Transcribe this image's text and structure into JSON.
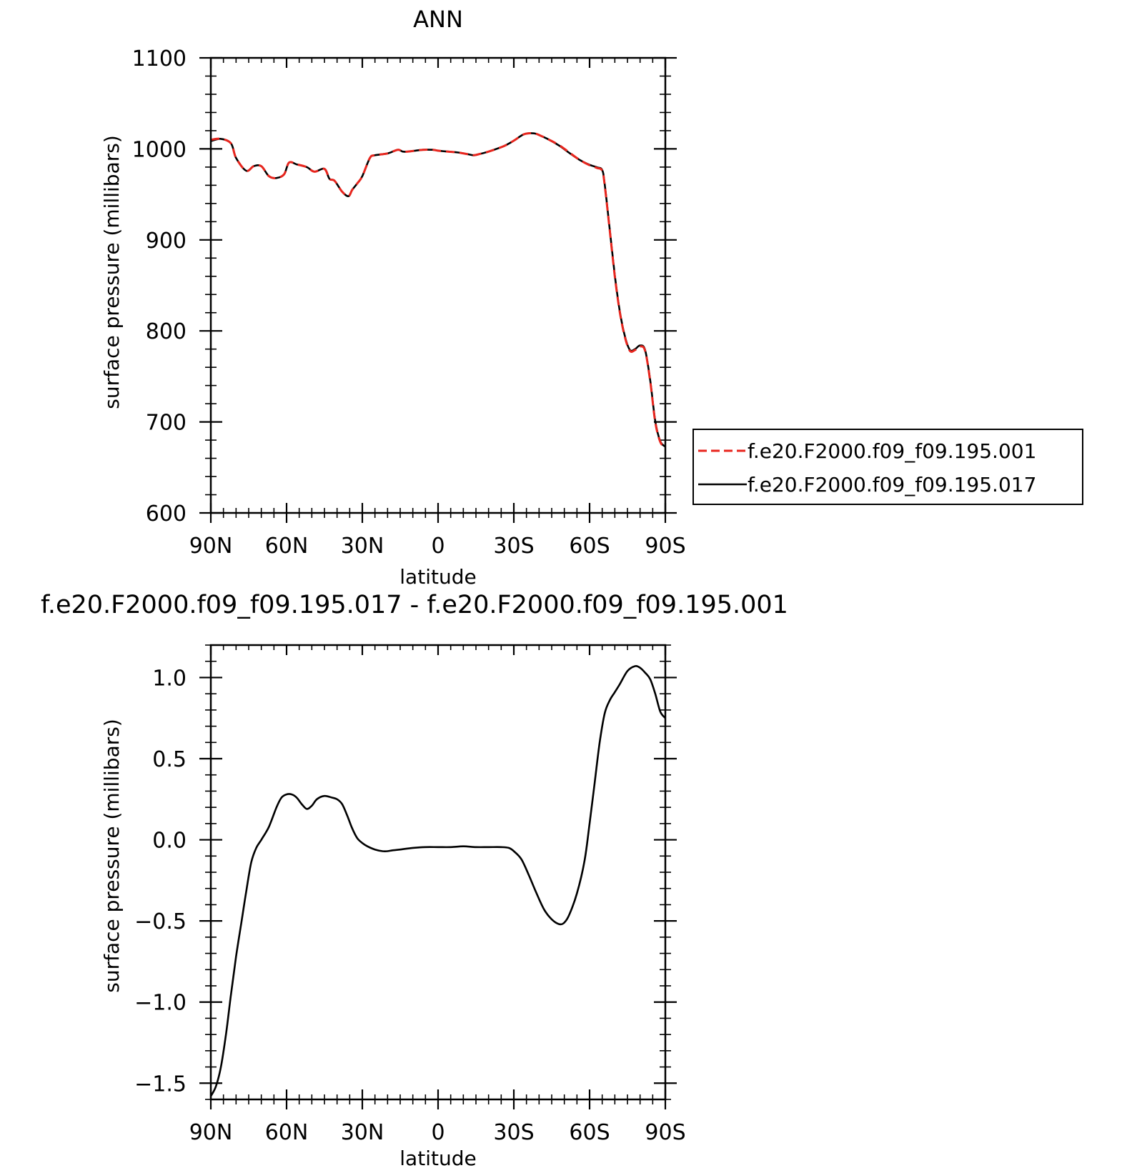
{
  "colors": {
    "series_001": "#e8261e",
    "series_017": "#000000",
    "axes": "#000000",
    "background": "#ffffff"
  },
  "chart_data": [
    {
      "type": "line",
      "title": "ANN",
      "xlabel": "latitude",
      "ylabel": "surface pressure (millibars)",
      "xlim": [
        90,
        -90
      ],
      "ylim": [
        600,
        1100
      ],
      "x_ticks": [
        {
          "value": 90,
          "label": "90N"
        },
        {
          "value": 60,
          "label": "60N"
        },
        {
          "value": 30,
          "label": "30N"
        },
        {
          "value": 0,
          "label": "0"
        },
        {
          "value": -30,
          "label": "30S"
        },
        {
          "value": -60,
          "label": "60S"
        },
        {
          "value": -90,
          "label": "90S"
        }
      ],
      "y_ticks": [
        {
          "value": 1100,
          "label": "1100"
        },
        {
          "value": 1000,
          "label": "1000"
        },
        {
          "value": 900,
          "label": "900"
        },
        {
          "value": 800,
          "label": "800"
        },
        {
          "value": 700,
          "label": "700"
        },
        {
          "value": 600,
          "label": "600"
        }
      ],
      "grid": false,
      "legend_position": "right",
      "series": [
        {
          "name": "f.e20.F2000.f09_f09.195.001",
          "style": "dashed",
          "color": "#e8261e",
          "x": [
            90,
            86,
            82,
            80,
            76,
            73,
            70,
            67,
            64,
            61,
            59,
            56,
            52,
            49,
            45,
            43,
            41,
            38,
            35.5,
            34,
            32,
            30,
            27,
            25,
            20,
            16,
            14,
            12,
            9,
            6,
            2,
            0,
            -4,
            -8,
            -12,
            -14,
            -16,
            -20,
            -26,
            -30,
            -34,
            -38,
            -41,
            -44,
            -48,
            -52,
            -56,
            -60,
            -63,
            -65,
            -66,
            -68,
            -70,
            -72,
            -74,
            -76,
            -78,
            -80,
            -82,
            -84,
            -86,
            -88,
            -90
          ],
          "y": [
            1010,
            1011,
            1006,
            990,
            976,
            981,
            981,
            970,
            968,
            972,
            985,
            983,
            980,
            975,
            978,
            967,
            965,
            953,
            948,
            955,
            962,
            970,
            990,
            993,
            995,
            999,
            997,
            997,
            998,
            999,
            999,
            998,
            997,
            996,
            994,
            993,
            994,
            997,
            1003,
            1009,
            1016,
            1017,
            1014,
            1010,
            1004,
            996,
            988,
            982,
            979,
            976,
            960,
            910,
            860,
            820,
            793,
            778,
            779,
            783,
            778,
            745,
            700,
            678,
            672
          ]
        },
        {
          "name": "f.e20.F2000.f09_f09.195.017",
          "style": "solid",
          "color": "#000000",
          "x": [
            90,
            86,
            82,
            80,
            76,
            73,
            70,
            67,
            64,
            61,
            59,
            56,
            52,
            49,
            45,
            43,
            41,
            38,
            35.5,
            34,
            32,
            30,
            27,
            25,
            20,
            16,
            14,
            12,
            9,
            6,
            2,
            0,
            -4,
            -8,
            -12,
            -14,
            -16,
            -20,
            -26,
            -30,
            -34,
            -38,
            -41,
            -44,
            -48,
            -52,
            -56,
            -60,
            -63,
            -65,
            -66,
            -68,
            -70,
            -72,
            -74,
            -76,
            -78,
            -80,
            -82,
            -84,
            -86,
            -88,
            -90
          ],
          "y": [
            1008.5,
            1011,
            1006,
            990,
            976,
            981,
            981,
            970,
            968,
            972,
            985,
            983,
            980,
            975,
            978,
            967,
            965,
            953,
            948,
            955,
            962,
            970,
            990,
            993,
            995,
            999,
            997,
            997,
            998,
            999,
            999,
            998,
            997,
            996,
            994,
            993,
            994,
            997,
            1003,
            1009,
            1016,
            1017,
            1014,
            1010,
            1003.5,
            995.5,
            988,
            982.5,
            979.7,
            976.8,
            961,
            911,
            861,
            821,
            794,
            779,
            780,
            784,
            779,
            746,
            701,
            678.8,
            672.8
          ]
        }
      ]
    },
    {
      "type": "line",
      "title": "f.e20.F2000.f09_f09.195.017 - f.e20.F2000.f09_f09.195.001",
      "xlabel": "latitude",
      "ylabel": "surface pressure (millibars)",
      "xlim": [
        90,
        -90
      ],
      "ylim": [
        -1.6,
        1.2
      ],
      "x_ticks": [
        {
          "value": 90,
          "label": "90N"
        },
        {
          "value": 60,
          "label": "60N"
        },
        {
          "value": 30,
          "label": "30N"
        },
        {
          "value": 0,
          "label": "0"
        },
        {
          "value": -30,
          "label": "30S"
        },
        {
          "value": -60,
          "label": "60S"
        },
        {
          "value": -90,
          "label": "90S"
        }
      ],
      "y_ticks": [
        {
          "value": 1.0,
          "label": "1.0"
        },
        {
          "value": 0.5,
          "label": "0.5"
        },
        {
          "value": 0.0,
          "label": "0.0"
        },
        {
          "value": -0.5,
          "label": "−0.5"
        },
        {
          "value": -1.0,
          "label": "−1.0"
        },
        {
          "value": -1.5,
          "label": "−1.5"
        }
      ],
      "grid": false,
      "series": [
        {
          "color": "#000000",
          "style": "solid",
          "x": [
            90,
            88,
            86,
            84,
            82,
            80,
            78,
            76,
            74,
            72,
            70,
            67,
            64,
            62,
            60,
            58,
            56,
            54,
            52,
            50,
            48,
            45,
            42,
            40,
            38,
            36,
            34,
            32,
            30,
            28,
            25,
            22,
            20,
            18,
            15,
            10,
            5,
            0,
            -5,
            -10,
            -15,
            -20,
            -25,
            -28,
            -30,
            -33,
            -36,
            -39,
            -42,
            -45,
            -48,
            -50,
            -52,
            -55,
            -58,
            -60,
            -62,
            -64,
            -66,
            -68,
            -70,
            -72,
            -75,
            -78,
            -80,
            -82,
            -84,
            -86,
            -88,
            -90
          ],
          "y": [
            -1.58,
            -1.52,
            -1.4,
            -1.2,
            -0.95,
            -0.72,
            -0.52,
            -0.32,
            -0.14,
            -0.05,
            0.0,
            0.08,
            0.2,
            0.26,
            0.28,
            0.28,
            0.26,
            0.22,
            0.19,
            0.21,
            0.25,
            0.27,
            0.26,
            0.25,
            0.22,
            0.15,
            0.07,
            0.01,
            -0.02,
            -0.04,
            -0.06,
            -0.07,
            -0.07,
            -0.065,
            -0.06,
            -0.05,
            -0.045,
            -0.045,
            -0.045,
            -0.04,
            -0.045,
            -0.045,
            -0.045,
            -0.05,
            -0.07,
            -0.12,
            -0.22,
            -0.33,
            -0.43,
            -0.49,
            -0.52,
            -0.51,
            -0.46,
            -0.33,
            -0.13,
            0.1,
            0.35,
            0.6,
            0.78,
            0.86,
            0.91,
            0.96,
            1.04,
            1.07,
            1.06,
            1.03,
            0.99,
            0.9,
            0.79,
            0.75
          ]
        }
      ]
    }
  ]
}
